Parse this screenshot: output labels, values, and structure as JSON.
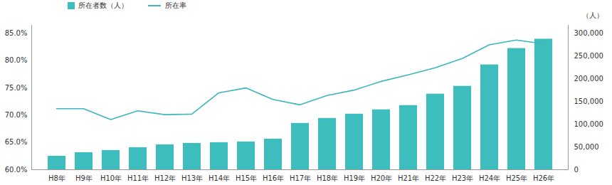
{
  "chart_data": {
    "type": "bar_line",
    "categories": [
      "H8年",
      "H9年",
      "H10年",
      "H11年",
      "H12年",
      "H13年",
      "H14年",
      "H15年",
      "H16年",
      "H17年",
      "H18年",
      "H19年",
      "H20年",
      "H21年",
      "H22年",
      "H23年",
      "H24年",
      "H25年",
      "H26年"
    ],
    "series": [
      {
        "name": "所在者数（人）",
        "type": "bar",
        "color": "#3dbdbd",
        "axis": "y2",
        "values": [
          29800,
          37700,
          42400,
          48700,
          55000,
          58100,
          59700,
          61300,
          67500,
          102100,
          113100,
          122500,
          132000,
          141400,
          166500,
          183800,
          230900,
          267000,
          287500
        ]
      },
      {
        "name": "所在率",
        "type": "line",
        "color": "#3bb7be",
        "values": [
          71.2,
          71.2,
          69.2,
          70.8,
          70.1,
          70.2,
          74.1,
          75.0,
          72.9,
          71.9,
          73.6,
          74.6,
          76.2,
          77.4,
          78.7,
          80.4,
          82.9,
          83.8,
          83.1
        ]
      }
    ],
    "ylim": [
      60,
      86.5
    ],
    "yticks": [
      {
        "value": 60,
        "label": "60.0%"
      },
      {
        "value": 65,
        "label": "65.0%"
      },
      {
        "value": 70,
        "label": "70.0%"
      },
      {
        "value": 75,
        "label": "75.0%"
      },
      {
        "value": 80,
        "label": "80.0%"
      },
      {
        "value": 85,
        "label": "85.0%"
      }
    ],
    "y2lim": [
      0,
      318000
    ],
    "y2ticks": [
      0,
      {
        "value": 50000,
        "label": "50,000"
      },
      {
        "value": 100000,
        "label": "100,000"
      },
      {
        "value": 150000,
        "label": "150,000"
      },
      {
        "value": 200000,
        "label": "200,000"
      },
      {
        "value": 250000,
        "label": "250,000"
      },
      {
        "value": 300000,
        "label": "300,000"
      }
    ],
    "y2_label": "（人）",
    "legend": "top"
  }
}
